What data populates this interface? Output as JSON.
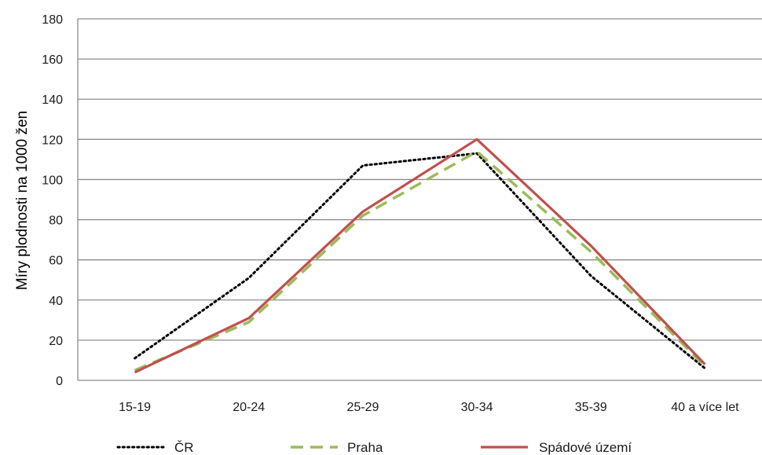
{
  "chart_data": {
    "type": "line",
    "title": "",
    "xlabel": "",
    "ylabel": "Míry plodnosti na 1000 žen",
    "categories": [
      "15-19",
      "20-24",
      "25-29",
      "30-34",
      "35-39",
      "40 a více let"
    ],
    "ylim": [
      0,
      180
    ],
    "yticks": [
      0,
      20,
      40,
      60,
      80,
      100,
      120,
      140,
      160,
      180
    ],
    "grid": true,
    "legend_position": "bottom",
    "series": [
      {
        "name": "ČR",
        "values": [
          11,
          51,
          107,
          113,
          52,
          6
        ],
        "color": "#000000",
        "dash": "dotted"
      },
      {
        "name": "Praha",
        "values": [
          5,
          29,
          82,
          114,
          64,
          7
        ],
        "color": "#9BBB59",
        "dash": "dashed"
      },
      {
        "name": "Spádové území",
        "values": [
          4,
          31,
          84,
          120,
          67,
          8
        ],
        "color": "#C0504D",
        "dash": "solid"
      }
    ]
  }
}
